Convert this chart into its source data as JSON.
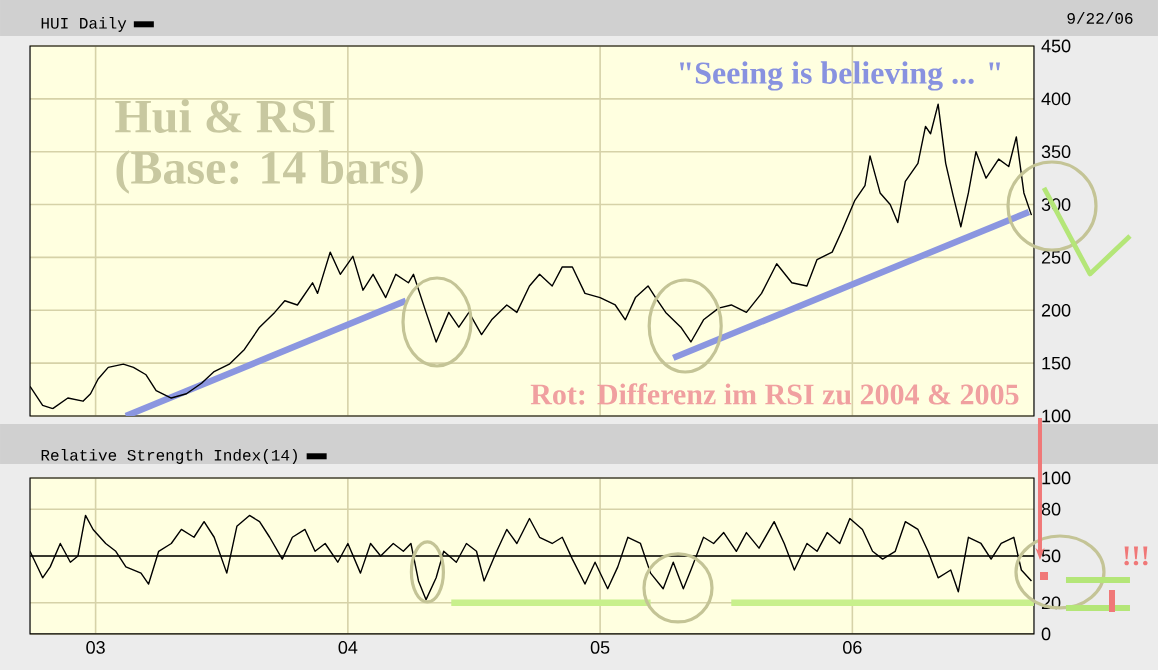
{
  "chart_data": [
    {
      "type": "line",
      "xlim": [
        2002.74,
        2006.72
      ],
      "ylim": [
        100,
        450
      ],
      "xticks": [
        2003,
        2004,
        2005,
        2006
      ],
      "yticks": [
        100,
        150,
        200,
        250,
        300,
        350,
        400,
        450
      ],
      "grid": true,
      "legend": "top left",
      "tick_labels": "y",
      "annotations": [
        "Hui & RSI",
        "(Base: 14 bars)",
        "\"Seeing is believing ... \"",
        "Rot: Differenz im RSI zu 2004 & 2005",
        "9/22/06"
      ],
      "series": [
        {
          "name": "HUI Daily",
          "color": "#000000",
          "x": [
            2002.74,
            2002.79,
            2002.83,
            2002.89,
            2002.95,
            2002.98,
            2003.01,
            2003.05,
            2003.11,
            2003.15,
            2003.2,
            2003.24,
            2003.3,
            2003.36,
            2003.42,
            2003.47,
            2003.53,
            2003.59,
            2003.65,
            2003.71,
            2003.75,
            2003.8,
            2003.86,
            2003.88,
            2003.93,
            2003.97,
            2004.02,
            2004.06,
            2004.1,
            2004.15,
            2004.19,
            2004.24,
            2004.26,
            2004.31,
            2004.35,
            2004.4,
            2004.44,
            2004.48,
            2004.53,
            2004.57,
            2004.63,
            2004.67,
            2004.72,
            2004.76,
            2004.81,
            2004.85,
            2004.89,
            2004.94,
            2005.0,
            2005.06,
            2005.1,
            2005.14,
            2005.19,
            2005.22,
            2005.26,
            2005.32,
            2005.36,
            2005.41,
            2005.47,
            2005.52,
            2005.58,
            2005.64,
            2005.7,
            2005.76,
            2005.82,
            2005.86,
            2005.92,
            2005.96,
            2006.01,
            2006.05,
            2006.07,
            2006.11,
            2006.15,
            2006.18,
            2006.21,
            2006.26,
            2006.29,
            2006.31,
            2006.34,
            2006.37,
            2006.4,
            2006.43,
            2006.46,
            2006.49,
            2006.53,
            2006.58,
            2006.62,
            2006.65,
            2006.68,
            2006.71
          ],
          "values": [
            128,
            110,
            107,
            117,
            114,
            121,
            135,
            146,
            149,
            146,
            139,
            124,
            117,
            121,
            131,
            142,
            149,
            163,
            184,
            198,
            209,
            205,
            226,
            216,
            255,
            234,
            251,
            219,
            234,
            212,
            234,
            226,
            234,
            198,
            170,
            198,
            184,
            198,
            177,
            191,
            205,
            198,
            223,
            234,
            223,
            241,
            241,
            216,
            212,
            205,
            191,
            212,
            223,
            212,
            198,
            184,
            170,
            191,
            202,
            205,
            198,
            216,
            244,
            226,
            223,
            248,
            255,
            276,
            304,
            318,
            346,
            311,
            300,
            283,
            322,
            339,
            374,
            367,
            395,
            339,
            308,
            279,
            311,
            350,
            325,
            343,
            336,
            364,
            311,
            290
          ]
        },
        {
          "color": "#8b96e0",
          "x": [
            2003.12,
            2004.23
          ],
          "values": [
            100,
            209
          ]
        },
        {
          "color": "#8b96e0",
          "x": [
            2005.29,
            2006.7
          ],
          "values": [
            155,
            293
          ]
        }
      ]
    },
    {
      "type": "line",
      "xlim": [
        2002.74,
        2006.72
      ],
      "ylim": [
        0,
        100
      ],
      "xticks": [
        {
          "value": 2003,
          "label": "03"
        },
        {
          "value": 2004,
          "label": "04"
        },
        {
          "value": 2005,
          "label": "05"
        },
        {
          "value": 2006,
          "label": "06"
        }
      ],
      "yticks": [
        0,
        20,
        50,
        80,
        100
      ],
      "grid": true,
      "legend": "top left",
      "annotations": [
        "!!!"
      ],
      "ref_lines": [
        {
          "axis": "y",
          "value": 50,
          "color": "#000000"
        }
      ],
      "series": [
        {
          "name": "Relative Strength Index(14)",
          "color": "#000000",
          "x": [
            2002.74,
            2002.79,
            2002.82,
            2002.86,
            2002.9,
            2002.93,
            2002.96,
            2002.99,
            2003.04,
            2003.08,
            2003.12,
            2003.18,
            2003.21,
            2003.25,
            2003.3,
            2003.34,
            2003.39,
            2003.43,
            2003.47,
            2003.52,
            2003.56,
            2003.61,
            2003.65,
            2003.69,
            2003.74,
            2003.78,
            2003.83,
            2003.87,
            2003.91,
            2003.96,
            2004.0,
            2004.05,
            2004.09,
            2004.13,
            2004.18,
            2004.22,
            2004.25,
            2004.28,
            2004.31,
            2004.35,
            2004.38,
            2004.43,
            2004.47,
            2004.51,
            2004.54,
            2004.59,
            2004.63,
            2004.67,
            2004.72,
            2004.76,
            2004.81,
            2004.85,
            2004.89,
            2004.94,
            2004.98,
            2005.03,
            2005.07,
            2005.11,
            2005.16,
            2005.2,
            2005.25,
            2005.29,
            2005.33,
            2005.36,
            2005.41,
            2005.45,
            2005.49,
            2005.54,
            2005.58,
            2005.63,
            2005.69,
            2005.73,
            2005.77,
            2005.82,
            2005.86,
            2005.9,
            2005.95,
            2005.99,
            2006.04,
            2006.08,
            2006.12,
            2006.17,
            2006.21,
            2006.26,
            2006.3,
            2006.34,
            2006.39,
            2006.42,
            2006.46,
            2006.51,
            2006.55,
            2006.59,
            2006.64,
            2006.67,
            2006.71
          ],
          "values": [
            53,
            36,
            43,
            58,
            46,
            50,
            76,
            67,
            58,
            53,
            43,
            39,
            32,
            53,
            58,
            67,
            62,
            72,
            62,
            39,
            69,
            76,
            72,
            62,
            48,
            62,
            67,
            53,
            58,
            46,
            58,
            39,
            58,
            50,
            58,
            53,
            58,
            34,
            22,
            36,
            53,
            46,
            58,
            53,
            34,
            53,
            67,
            58,
            74,
            62,
            58,
            62,
            48,
            32,
            46,
            29,
            43,
            62,
            58,
            39,
            29,
            46,
            29,
            41,
            62,
            58,
            65,
            53,
            65,
            55,
            72,
            58,
            41,
            58,
            53,
            65,
            58,
            74,
            67,
            53,
            48,
            53,
            72,
            67,
            53,
            36,
            41,
            27,
            62,
            58,
            48,
            58,
            62,
            41,
            34
          ]
        },
        {
          "color": "#c8f08c",
          "x": [
            2004.41,
            2005.2
          ],
          "values": [
            20,
            20
          ]
        },
        {
          "color": "#c8f08c",
          "x": [
            2005.52,
            2006.72
          ],
          "values": [
            20,
            20
          ]
        }
      ]
    }
  ]
}
